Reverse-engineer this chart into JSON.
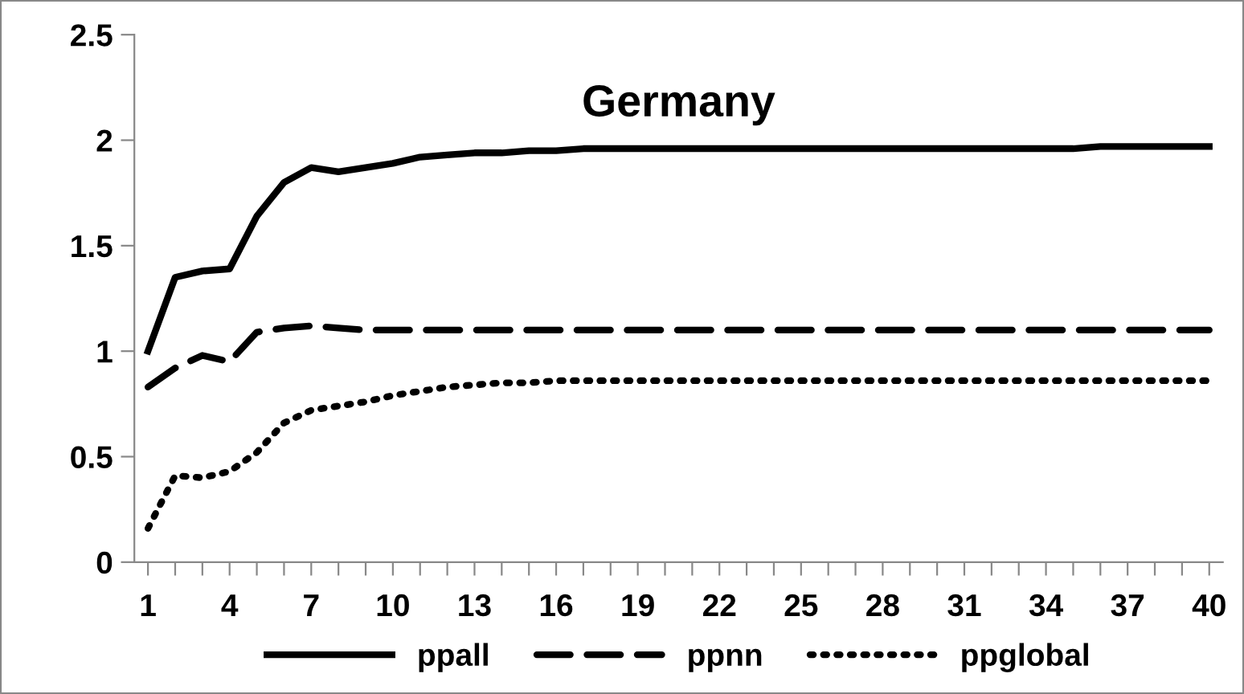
{
  "chart_data": {
    "type": "line",
    "title": "Germany",
    "categories": [
      "1",
      null,
      null,
      "4",
      null,
      null,
      "7",
      null,
      null,
      "10",
      null,
      null,
      "13",
      null,
      null,
      "16",
      null,
      null,
      "19",
      null,
      null,
      "22",
      null,
      null,
      "25",
      null,
      null,
      "28",
      null,
      null,
      "31",
      null,
      null,
      "34",
      null,
      null,
      "37",
      null,
      null,
      "40"
    ],
    "ylim": [
      0,
      2.5
    ],
    "yticks": [
      0,
      0.5,
      1,
      1.5,
      2,
      2.5
    ],
    "grid": false,
    "legend": "bottom",
    "marker": "none",
    "series": [
      {
        "name": "ppall",
        "color": "#000000",
        "line_style": "solid",
        "values": [
          1.0,
          1.35,
          1.38,
          1.39,
          1.64,
          1.8,
          1.87,
          1.85,
          1.87,
          1.89,
          1.92,
          1.93,
          1.94,
          1.94,
          1.95,
          1.95,
          1.96,
          1.96,
          1.96,
          1.96,
          1.96,
          1.96,
          1.96,
          1.96,
          1.96,
          1.96,
          1.96,
          1.96,
          1.96,
          1.96,
          1.96,
          1.96,
          1.96,
          1.96,
          1.96,
          1.97,
          1.97,
          1.97,
          1.97,
          1.97
        ]
      },
      {
        "name": "ppnn",
        "color": "#000000",
        "line_style": "dashed",
        "values": [
          0.83,
          0.92,
          0.98,
          0.95,
          1.09,
          1.11,
          1.12,
          1.11,
          1.1,
          1.1,
          1.1,
          1.1,
          1.1,
          1.1,
          1.1,
          1.1,
          1.1,
          1.1,
          1.1,
          1.1,
          1.1,
          1.1,
          1.1,
          1.1,
          1.1,
          1.1,
          1.1,
          1.1,
          1.1,
          1.1,
          1.1,
          1.1,
          1.1,
          1.1,
          1.1,
          1.1,
          1.1,
          1.1,
          1.1,
          1.1
        ]
      },
      {
        "name": "ppglobal",
        "color": "#000000",
        "line_style": "dotted",
        "values": [
          0.16,
          0.41,
          0.4,
          0.43,
          0.52,
          0.66,
          0.72,
          0.74,
          0.76,
          0.79,
          0.81,
          0.83,
          0.84,
          0.85,
          0.85,
          0.86,
          0.86,
          0.86,
          0.86,
          0.86,
          0.86,
          0.86,
          0.86,
          0.86,
          0.86,
          0.86,
          0.86,
          0.86,
          0.86,
          0.86,
          0.86,
          0.86,
          0.86,
          0.86,
          0.86,
          0.86,
          0.86,
          0.86,
          0.86,
          0.86
        ]
      }
    ]
  }
}
